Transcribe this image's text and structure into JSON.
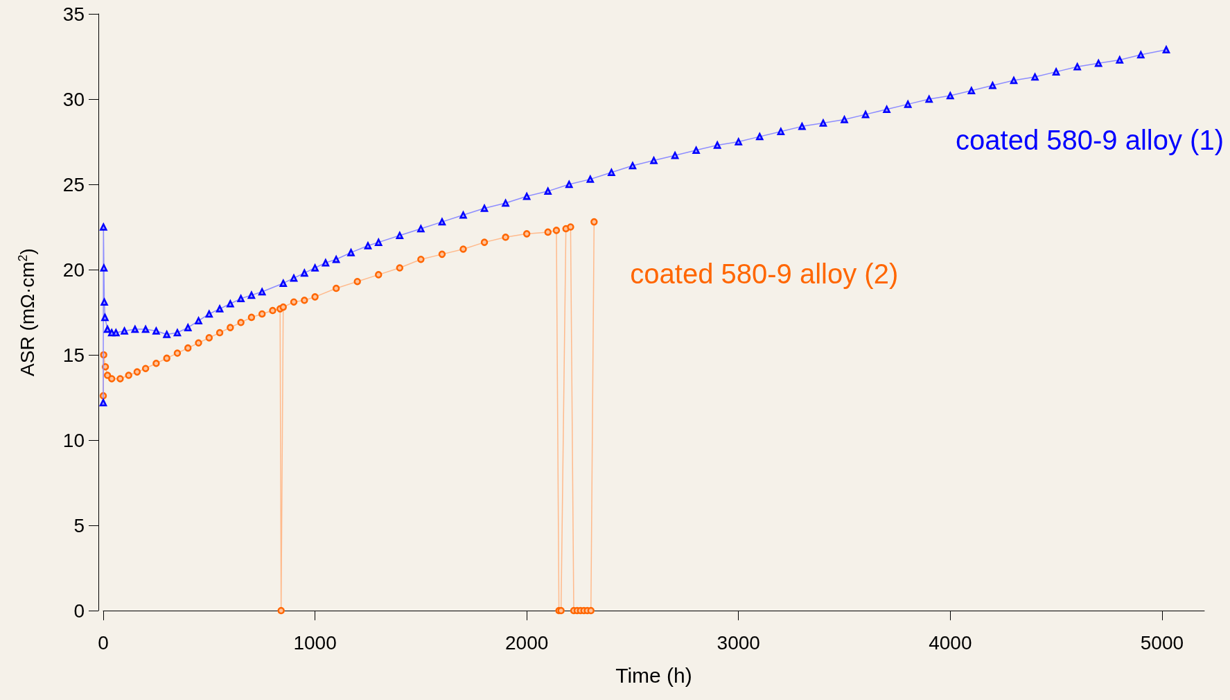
{
  "chart_data": {
    "type": "line",
    "xlabel": "Time (h)",
    "ylabel": "ASR (mΩ·cm$^{2}$)",
    "xlim": [
      0,
      5200
    ],
    "xticks": [
      0,
      1000,
      2000,
      3000,
      4000,
      5000
    ],
    "ylim": [
      0,
      35
    ],
    "yticks": [
      0,
      5,
      10,
      15,
      20,
      25,
      30,
      35
    ],
    "grid": false,
    "legend": false,
    "series": [
      {
        "name": "coated 580-9 alloy (1)",
        "color": "#0000ff",
        "marker": "triangle",
        "x": [
          0,
          1,
          3,
          5,
          8,
          20,
          40,
          60,
          100,
          150,
          200,
          250,
          300,
          350,
          400,
          450,
          500,
          550,
          600,
          650,
          700,
          750,
          850,
          900,
          950,
          1000,
          1050,
          1100,
          1170,
          1250,
          1300,
          1400,
          1500,
          1600,
          1700,
          1800,
          1900,
          2000,
          2100,
          2200,
          2300,
          2400,
          2500,
          2600,
          2700,
          2800,
          2900,
          3000,
          3100,
          3200,
          3300,
          3400,
          3500,
          3600,
          3700,
          3800,
          3900,
          4000,
          4100,
          4200,
          4300,
          4400,
          4500,
          4600,
          4700,
          4800,
          4900,
          5020
        ],
        "values": [
          12.2,
          22.5,
          20.1,
          18.1,
          17.2,
          16.5,
          16.3,
          16.3,
          16.4,
          16.5,
          16.5,
          16.4,
          16.2,
          16.3,
          16.6,
          17.0,
          17.4,
          17.7,
          18.0,
          18.3,
          18.5,
          18.7,
          19.2,
          19.5,
          19.8,
          20.1,
          20.4,
          20.6,
          21.0,
          21.4,
          21.6,
          22.0,
          22.4,
          22.8,
          23.2,
          23.6,
          23.9,
          24.3,
          24.6,
          25.0,
          25.3,
          25.7,
          26.1,
          26.4,
          26.7,
          27.0,
          27.3,
          27.5,
          27.8,
          28.1,
          28.4,
          28.6,
          28.8,
          29.1,
          29.4,
          29.7,
          30.0,
          30.2,
          30.5,
          30.8,
          31.1,
          31.3,
          31.6,
          31.9,
          32.1,
          32.3,
          32.6,
          32.9
        ]
      },
      {
        "name": "coated 580-9 alloy (2)",
        "color": "#ff6600",
        "marker": "circle",
        "x": [
          0,
          2,
          10,
          20,
          40,
          80,
          120,
          160,
          200,
          250,
          300,
          350,
          400,
          450,
          500,
          550,
          600,
          650,
          700,
          750,
          800,
          835,
          840,
          850,
          900,
          950,
          1000,
          1100,
          1200,
          1300,
          1400,
          1500,
          1600,
          1700,
          1800,
          1900,
          2000,
          2100,
          2140,
          2152,
          2162,
          2185,
          2207,
          2222,
          2238,
          2254,
          2270,
          2286,
          2303,
          2318
        ],
        "values": [
          12.6,
          15.0,
          14.3,
          13.8,
          13.6,
          13.6,
          13.8,
          14.0,
          14.2,
          14.5,
          14.8,
          15.1,
          15.4,
          15.7,
          16.0,
          16.3,
          16.6,
          16.9,
          17.2,
          17.4,
          17.6,
          17.7,
          0,
          17.8,
          18.1,
          18.2,
          18.4,
          18.9,
          19.3,
          19.7,
          20.1,
          20.6,
          20.9,
          21.2,
          21.6,
          21.9,
          22.1,
          22.2,
          22.3,
          0,
          0,
          22.4,
          22.5,
          0,
          0,
          0,
          0,
          0,
          0,
          22.8
        ]
      }
    ]
  }
}
